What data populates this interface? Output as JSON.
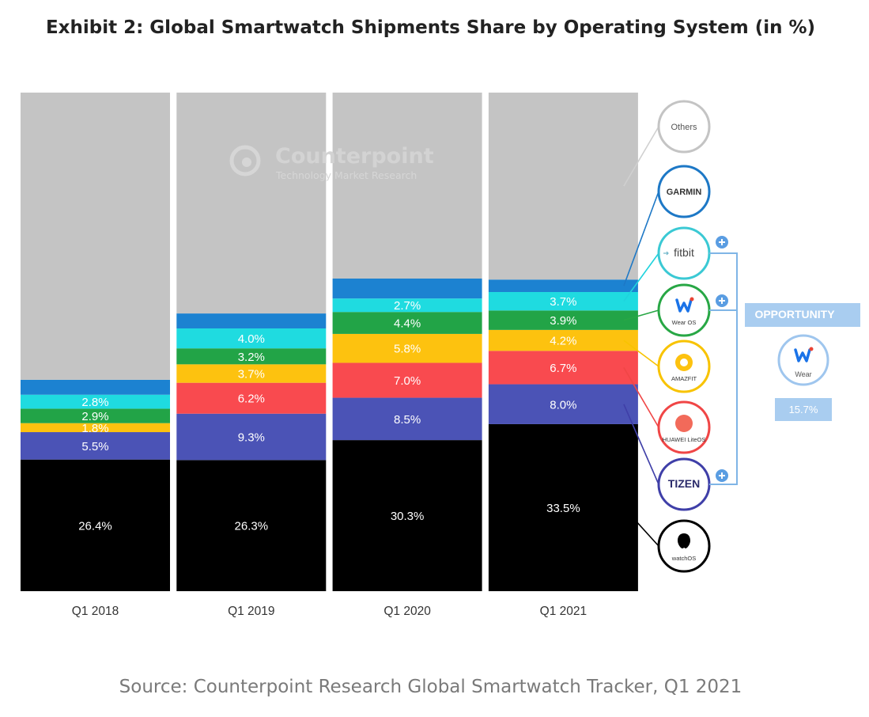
{
  "title": "Exhibit 2: Global Smartwatch Shipments Share by Operating System (in %)",
  "source": "Source: Counterpoint Research Global Smartwatch Tracker, Q1 2021",
  "watermark": {
    "name": "Counterpoint",
    "subtitle": "Technology Market Research"
  },
  "legend_logos": [
    {
      "id": "others",
      "text": "Others",
      "color": "#c4c4c4"
    },
    {
      "id": "garmin",
      "text": "GARMIN",
      "color": "#1d78c6"
    },
    {
      "id": "fitbit",
      "text": "fitbit",
      "color": "#1fd3dd"
    },
    {
      "id": "wearos",
      "text": "Wear OS",
      "color": "#28a745"
    },
    {
      "id": "amazfit",
      "text": "AMAZFIT",
      "color": "#f8c300"
    },
    {
      "id": "huawei",
      "text": "HUAWEI LiteOS",
      "color": "#f04646"
    },
    {
      "id": "tizen",
      "text": "TIZEN",
      "color": "#3f3fa8"
    },
    {
      "id": "watchos",
      "text": "watchOS",
      "color": "#000000"
    }
  ],
  "opportunity": {
    "label": "OPPORTUNITY",
    "logo_text": "Wear",
    "value": "15.7%"
  },
  "chart_data": {
    "type": "bar",
    "stacked": true,
    "categories": [
      "Q1 2018",
      "Q1 2019",
      "Q1 2020",
      "Q1 2021"
    ],
    "ylim": [
      0,
      100
    ],
    "series": [
      {
        "id": "watchos",
        "color": "#000000",
        "values": [
          26.4,
          26.3,
          30.3,
          33.5
        ],
        "labels": [
          "26.4%",
          "26.3%",
          "30.3%",
          "33.5%"
        ]
      },
      {
        "id": "tizen",
        "color": "#4b53b6",
        "values": [
          5.5,
          9.3,
          8.5,
          8.0
        ],
        "labels": [
          "5.5%",
          "9.3%",
          "8.5%",
          "8.0%"
        ]
      },
      {
        "id": "huawei",
        "color": "#f94a4f",
        "values": [
          0,
          6.2,
          7.0,
          6.7
        ],
        "labels": [
          "",
          "6.2%",
          "7.0%",
          "6.7%"
        ]
      },
      {
        "id": "amazfit",
        "color": "#fdc20f",
        "values": [
          1.8,
          3.7,
          5.8,
          4.2
        ],
        "labels": [
          "1.8%",
          "3.7%",
          "5.8%",
          "4.2%"
        ]
      },
      {
        "id": "wearos",
        "color": "#22a447",
        "values": [
          2.9,
          3.2,
          4.4,
          3.9
        ],
        "labels": [
          "2.9%",
          "3.2%",
          "4.4%",
          "3.9%"
        ]
      },
      {
        "id": "fitbit",
        "color": "#1fdbe0",
        "values": [
          2.8,
          4.0,
          2.7,
          3.7
        ],
        "labels": [
          "2.8%",
          "4.0%",
          "2.7%",
          "3.7%"
        ]
      },
      {
        "id": "garmin",
        "color": "#1c82d1",
        "values": [
          3.0,
          3.0,
          4.0,
          2.5
        ],
        "labels": [
          "",
          "",
          "",
          ""
        ]
      },
      {
        "id": "others",
        "color": "#c4c4c4",
        "values": [
          57.6,
          44.3,
          37.3,
          37.5
        ],
        "labels": [
          "",
          "",
          "",
          ""
        ]
      }
    ]
  }
}
